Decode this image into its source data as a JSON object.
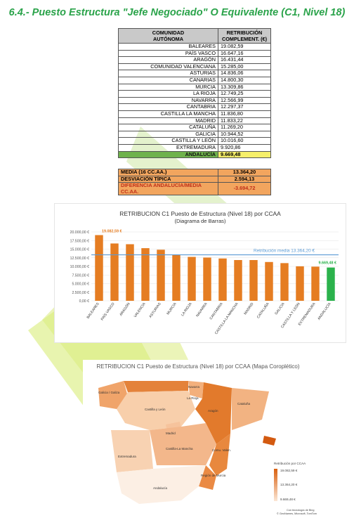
{
  "title": "6.4.- Puesto Estructura \"Jefe Negociado\" O Equivalente (C1, Nivel 18)",
  "table": {
    "header": [
      "COMUNIDAD\nAUTÓNOMA",
      "RETRIBUCIÓN\nCOMPLEMENT. (€)"
    ],
    "rows": [
      {
        "name": "BALEARES",
        "value": "19.082,59"
      },
      {
        "name": "PAÍS VASCO",
        "value": "16.647,16"
      },
      {
        "name": "ARAGÓN",
        "value": "16.431,44"
      },
      {
        "name": "COMUNIDAD VALENCIANA",
        "value": "15.285,00"
      },
      {
        "name": "ASTURIAS",
        "value": "14.836,06"
      },
      {
        "name": "CANARIAS",
        "value": "14.800,30"
      },
      {
        "name": "MURCIA",
        "value": "13.309,86"
      },
      {
        "name": "LA RIOJA",
        "value": "12.749,25"
      },
      {
        "name": "NAVARRA",
        "value": "12.566,99"
      },
      {
        "name": "CANTABRIA",
        "value": "12.297,37"
      },
      {
        "name": "CASTILLA LA MANCHA",
        "value": "11.836,80"
      },
      {
        "name": "MADRID",
        "value": "11.833,22"
      },
      {
        "name": "CATALUÑA",
        "value": "11.269,20"
      },
      {
        "name": "GALICIA",
        "value": "10.944,52"
      },
      {
        "name": "CASTILLA Y LEÓN",
        "value": "10.016,60"
      },
      {
        "name": "EXTREMADURA",
        "value": "9.920,86"
      },
      {
        "name": "ANDALUCÍA",
        "value": "9.669,48"
      }
    ]
  },
  "summary": [
    {
      "label": "MEDIA (16 CC.AA.)",
      "value": "13.364,20"
    },
    {
      "label": "DESVIACIÓN TÍPICA",
      "value": "2.594,13"
    },
    {
      "label": "DIFERENCIA ANDALUCÍA/MEDIA CC.AA.",
      "value": "-3.694,72"
    }
  ],
  "chart_data": [
    {
      "type": "bar",
      "title": "RETRIBUCION C1  Puesto de Estructura (Nivel 18) por CCAA",
      "subtitle": "(Diagrama de Barras)",
      "categories": [
        "BALEARES",
        "PAÍS VASCO",
        "ARAGÓN",
        "VALENCIA",
        "ASTURIAS",
        "MURCIA",
        "LA RIOJA",
        "NAVARRA",
        "CANTABRIA",
        "CASTILLA LA MANCHA",
        "MADRID",
        "CATALUÑA",
        "GALICIA",
        "CASTILLA Y LEÓN",
        "EXTREMADURA",
        "ANDALUCÍA"
      ],
      "values": [
        19082.59,
        16647.16,
        16431.44,
        15285.0,
        14836.06,
        13309.86,
        12749.25,
        12566.99,
        12297.37,
        11836.8,
        11833.22,
        11269.2,
        10944.52,
        10016.6,
        9920.86,
        9669.48
      ],
      "ylim": [
        0,
        20000
      ],
      "yticks": [
        "0,00 €",
        "2.500,00 €",
        "5.000,00 €",
        "7.500,00 €",
        "10.000,00 €",
        "12.500,00 €",
        "15.000,00 €",
        "17.500,00 €",
        "20.000,00 €"
      ],
      "reference_line": {
        "label": "Retribución media 13.364,20 €",
        "value": 13364.2
      },
      "data_labels": {
        "first": "19.082,59 €",
        "last": "9.669,48 €"
      },
      "colors": {
        "bar": "#e57d22",
        "highlight": "#2bb24c",
        "line": "#5b9bd5"
      }
    },
    {
      "type": "heatmap",
      "title": "RETRIBUCION C1 Puesto de Estructura (Nivel 18) por CCAA (Mapa Coroplético)",
      "region_labels": [
        "Galicia / Galiza",
        "Castilla y León",
        "Aragón",
        "Cataluña",
        "Extremadura",
        "Castilla-La Mancha",
        "Andalucía",
        "Región de Murcia",
        "Comu. Valen.",
        "Navarra",
        "La Rioja",
        "Madrid"
      ],
      "legend": {
        "title": "Retribución por CCAA",
        "max": "19.082,59 €",
        "mid": "13.364,20 €",
        "min": "9.669,48 €"
      },
      "credit": [
        "Con tecnología de Bing",
        "© GeoNames, Microsoft, TomTom"
      ],
      "colors": {
        "low": "#fbe7d6",
        "high": "#d9600f"
      }
    }
  ]
}
